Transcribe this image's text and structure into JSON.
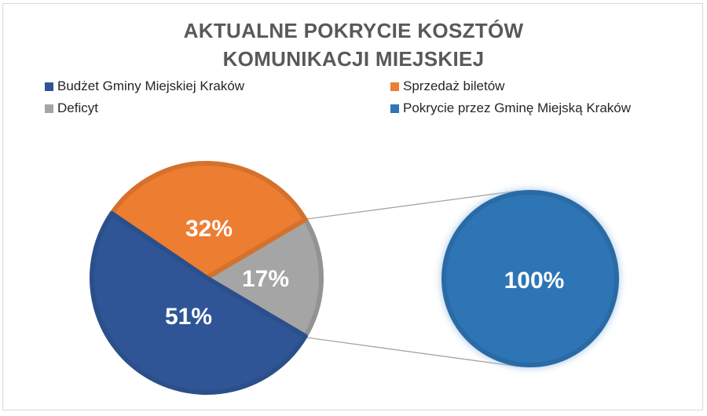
{
  "chart_data": {
    "type": "pie",
    "subtype": "bar-of-pie / pie-of-pie",
    "title": "AKTUALNE POKRYCIE KOSZTÓW KOMUNIKACJI MIEJSKIEJ",
    "title_lines": [
      "AKTUALNE POKRYCIE KOSZTÓW",
      "KOMUNIKACJI MIEJSKIEJ"
    ],
    "main_pie": {
      "categories": [
        "Budżet Gminy Miejskiej Kraków",
        "Sprzedaż biletów",
        "Deficyt"
      ],
      "values": [
        51,
        32,
        17
      ],
      "labels": [
        "51%",
        "32%",
        "17%"
      ],
      "colors": [
        "#2f5597",
        "#ed7d31",
        "#a5a5a5"
      ]
    },
    "secondary_pie": {
      "source_slice": "Deficyt",
      "categories": [
        "Pokrycie przez Gminę Miejską Kraków"
      ],
      "values": [
        100
      ],
      "labels": [
        "100%"
      ],
      "colors": [
        "#2e75b6"
      ]
    },
    "legend": {
      "position": "top",
      "entries": [
        {
          "label": "Budżet Gminy Miejskiej Kraków",
          "color": "#2f5597"
        },
        {
          "label": "Sprzedaż biletów",
          "color": "#ed7d31"
        },
        {
          "label": "Deficyt",
          "color": "#a5a5a5"
        },
        {
          "label": "Pokrycie przez Gminę Miejską Kraków",
          "color": "#2e75b6"
        }
      ]
    }
  }
}
